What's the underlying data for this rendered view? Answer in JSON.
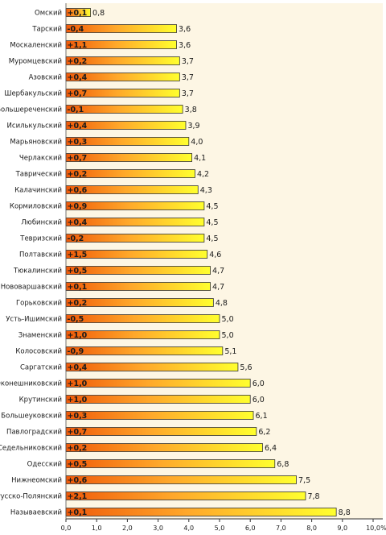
{
  "chart_data": {
    "type": "bar",
    "orientation": "horizontal",
    "categories": [
      "Омский",
      "Тарский",
      "Москаленский",
      "Муромцевский",
      "Азовский",
      "Шербакульский",
      "Большереченский",
      "Исилькульский",
      "Марьяновский",
      "Черлакский",
      "Таврический",
      "Калачинский",
      "Кормиловский",
      "Любинский",
      "Тевризский",
      "Полтавский",
      "Тюкалинский",
      "Нововаршавский",
      "Горьковский",
      "Усть-Ишимский",
      "Знаменский",
      "Колосовский",
      "Саргатский",
      "Оконешниковский",
      "Крутинский",
      "Большеуковский",
      "Павлоградский",
      "Седельниковский",
      "Одесский",
      "Нижнеомский",
      "Русско-Полянский",
      "Называевский"
    ],
    "values": [
      0.8,
      3.6,
      3.6,
      3.7,
      3.7,
      3.7,
      3.8,
      3.9,
      4.0,
      4.1,
      4.2,
      4.3,
      4.5,
      4.5,
      4.5,
      4.6,
      4.7,
      4.7,
      4.8,
      5.0,
      5.0,
      5.1,
      5.6,
      6.0,
      6.0,
      6.1,
      6.2,
      6.4,
      6.8,
      7.5,
      7.8,
      8.8
    ],
    "value_labels": [
      "0,8",
      "3,6",
      "3,6",
      "3,7",
      "3,7",
      "3,7",
      "3,8",
      "3,9",
      "4,0",
      "4,1",
      "4,2",
      "4,3",
      "4,5",
      "4,5",
      "4,5",
      "4,6",
      "4,7",
      "4,7",
      "4,8",
      "5,0",
      "5,0",
      "5,1",
      "5,6",
      "6,0",
      "6,0",
      "6,1",
      "6,2",
      "6,4",
      "6,8",
      "7,5",
      "7,8",
      "8,8"
    ],
    "change_labels": [
      "+0,1",
      "-0,4",
      "+1,1",
      "+0,2",
      "+0,4",
      "+0,7",
      "-0,1",
      "+0,4",
      "+0,3",
      "+0,7",
      "+0,2",
      "+0,6",
      "+0,9",
      "+0,4",
      "-0,2",
      "+1,5",
      "+0,5",
      "+0,1",
      "+0,2",
      "-0,5",
      "+1,0",
      "-0,9",
      "+0,4",
      "+1,0",
      "+1,0",
      "+0,3",
      "+0,7",
      "+0,2",
      "+0,5",
      "+0,6",
      "+2,1",
      "+0,1"
    ],
    "x_ticks": [
      0,
      1,
      2,
      3,
      4,
      5,
      6,
      7,
      8,
      9,
      10
    ],
    "x_tick_labels": [
      "0,0",
      "1,0",
      "2,0",
      "3,0",
      "4,0",
      "5,0",
      "6,0",
      "7,0",
      "8,0",
      "9,0",
      "10,0"
    ],
    "x_unit": "%",
    "xlim": [
      0,
      10
    ],
    "grid": false,
    "colors": {
      "plot_background": "#fdf6e4",
      "bar_left": "#f05a0a",
      "bar_mid": "#ffa82a",
      "bar_right": "#ffff2e",
      "bar_outline": "#333333",
      "change_text": "#1a1a1a"
    }
  }
}
